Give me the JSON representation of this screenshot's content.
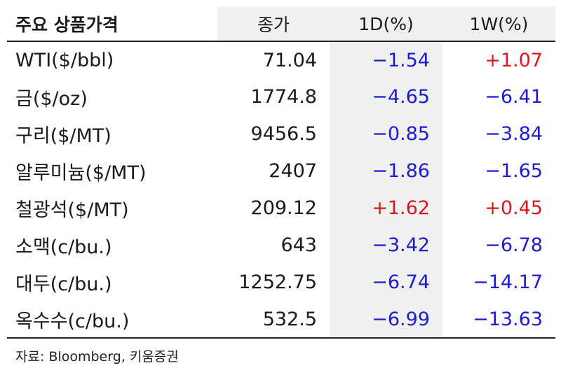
{
  "table": {
    "headers": [
      "주요 상품가격",
      "종가",
      "1D(%)",
      "1W(%)"
    ],
    "rows": [
      {
        "name": "WTI($/bbl)",
        "close": "71.04",
        "d1": "−1.54",
        "d1_sign": "neg",
        "w1": "+1.07",
        "w1_sign": "pos"
      },
      {
        "name": "금($/oz)",
        "close": "1774.8",
        "d1": "−4.65",
        "d1_sign": "neg",
        "w1": "−6.41",
        "w1_sign": "neg"
      },
      {
        "name": "구리($/MT)",
        "close": "9456.5",
        "d1": "−0.85",
        "d1_sign": "neg",
        "w1": "−3.84",
        "w1_sign": "neg"
      },
      {
        "name": "알루미늄($/MT)",
        "close": "2407",
        "d1": "−1.86",
        "d1_sign": "neg",
        "w1": "−1.65",
        "w1_sign": "neg"
      },
      {
        "name": "철광석($/MT)",
        "close": "209.12",
        "d1": "+1.62",
        "d1_sign": "pos",
        "w1": "+0.45",
        "w1_sign": "pos"
      },
      {
        "name": "소맥(c/bu.)",
        "close": "643",
        "d1": "−3.42",
        "d1_sign": "neg",
        "w1": "−6.78",
        "w1_sign": "neg"
      },
      {
        "name": "대두(c/bu.)",
        "close": "1252.75",
        "d1": "−6.74",
        "d1_sign": "neg",
        "w1": "−14.17",
        "w1_sign": "neg"
      },
      {
        "name": "옥수수(c/bu.)",
        "close": "532.5",
        "d1": "−6.99",
        "d1_sign": "neg",
        "w1": "−13.63",
        "w1_sign": "neg"
      }
    ]
  },
  "source": "자료: Bloomberg, 키움증권",
  "colors": {
    "negative": "#1b1bd6",
    "positive": "#e0141e",
    "header_bg": "#f0f0f0",
    "rule": "#222222"
  }
}
